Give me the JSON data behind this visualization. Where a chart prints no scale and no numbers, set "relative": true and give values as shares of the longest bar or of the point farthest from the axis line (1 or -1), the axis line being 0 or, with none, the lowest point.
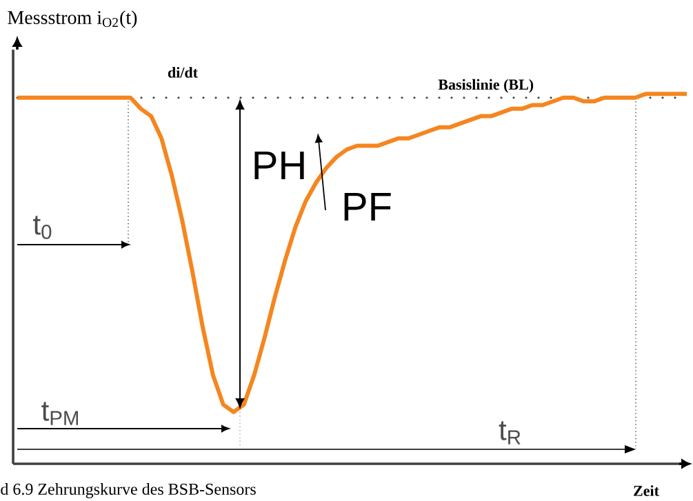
{
  "chart_data": {
    "type": "line",
    "relative": true,
    "xlabel": "Zeit",
    "ylabel": "Messstrom  i$_{O2}$(t)",
    "categories": [
      null,
      null,
      null,
      null,
      null,
      null,
      null,
      null,
      null,
      null,
      null,
      null,
      null,
      null,
      null,
      null,
      null,
      null,
      null,
      null,
      null,
      null,
      null,
      null,
      null,
      null,
      null,
      null,
      null,
      null,
      null,
      null,
      null,
      null,
      null,
      null,
      null,
      null,
      null,
      null,
      null,
      null,
      null,
      null,
      null,
      null,
      null,
      null,
      null,
      null,
      null,
      null,
      null,
      null,
      null,
      null,
      null,
      null,
      null,
      null,
      null,
      null,
      null,
      null,
      null,
      null
    ],
    "series": [
      {
        "color": "#f5861f",
        "values": [
          0.99,
          0.99,
          0.99,
          0.99,
          0.99,
          0.99,
          0.99,
          0.99,
          0.99,
          0.99,
          0.99,
          0.99,
          0.96,
          0.94,
          0.88,
          0.78,
          0.66,
          0.52,
          0.37,
          0.24,
          0.16,
          0.14,
          0.16,
          0.24,
          0.34,
          0.45,
          0.55,
          0.64,
          0.71,
          0.76,
          0.8,
          0.83,
          0.85,
          0.86,
          0.86,
          0.86,
          0.87,
          0.88,
          0.88,
          0.89,
          0.9,
          0.91,
          0.91,
          0.92,
          0.93,
          0.94,
          0.94,
          0.95,
          0.96,
          0.96,
          0.97,
          0.97,
          0.98,
          0.99,
          0.99,
          0.98,
          0.98,
          0.99,
          0.99,
          0.99,
          0.99,
          1,
          1,
          1,
          1,
          1
        ]
      }
    ],
    "ref_lines": [
      {
        "axis": "y",
        "value": 0.99,
        "label": "Basislinie (BL)",
        "color": "#444444",
        "line_style": "dotted"
      }
    ],
    "annotations": [
      "di/dt",
      "PH",
      "PF",
      "t$_{0}$",
      "t$_{PM}$",
      "t$_{R}$",
      "d 6.9  Zehrungskurve des BSB-Sensors"
    ],
    "marker": "none",
    "line_style": "solid"
  }
}
